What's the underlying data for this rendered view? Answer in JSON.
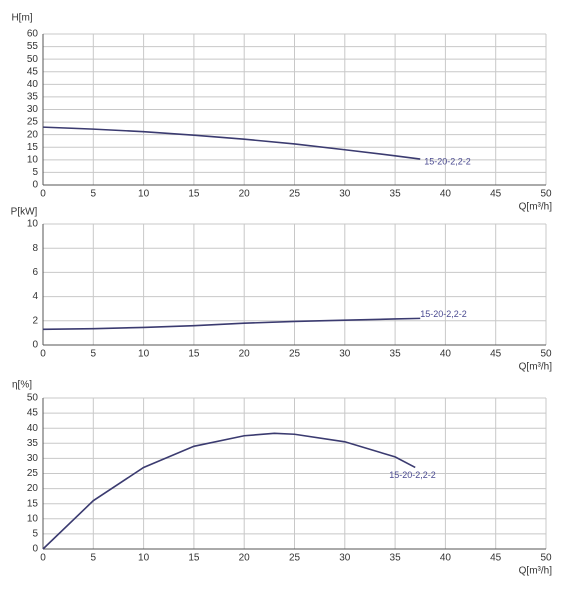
{
  "chart_data": [
    {
      "type": "line",
      "y_label": "H[m]",
      "x_label": "Q[m³/h]",
      "x": [
        0,
        5,
        10,
        15,
        20,
        25,
        30,
        35,
        37.5
      ],
      "series": [
        {
          "name": "15-20-2,2-2",
          "color": "#3b3b70",
          "values": [
            23,
            22.2,
            21.2,
            19.8,
            18.2,
            16.3,
            14,
            11.6,
            10.3
          ]
        }
      ],
      "xlim": [
        0,
        50
      ],
      "xticks": [
        0,
        5,
        10,
        15,
        20,
        25,
        30,
        35,
        40,
        45,
        50
      ],
      "ylim": [
        0,
        60
      ],
      "yticks": [
        0,
        5,
        10,
        15,
        20,
        25,
        30,
        35,
        40,
        45,
        50,
        55,
        60
      ],
      "grid": true
    },
    {
      "type": "line",
      "y_label": "P[kW]",
      "x_label": "Q[m³/h]",
      "x": [
        0,
        5,
        10,
        15,
        20,
        25,
        30,
        35,
        37.5
      ],
      "series": [
        {
          "name": "15-20-2,2-2",
          "color": "#3b3b70",
          "values": [
            1.3,
            1.35,
            1.45,
            1.6,
            1.8,
            1.95,
            2.05,
            2.15,
            2.2
          ]
        }
      ],
      "xlim": [
        0,
        50
      ],
      "xticks": [
        0,
        5,
        10,
        15,
        20,
        25,
        30,
        35,
        40,
        45,
        50
      ],
      "ylim": [
        0,
        10
      ],
      "yticks": [
        0,
        2,
        4,
        6,
        8,
        10
      ],
      "grid": true
    },
    {
      "type": "line",
      "y_label": "η[%]",
      "x_label": "Q[m³/h]",
      "x": [
        0,
        5,
        10,
        15,
        20,
        23,
        25,
        30,
        35,
        37
      ],
      "series": [
        {
          "name": "15-20-2,2-2",
          "color": "#3b3b70",
          "values": [
            0,
            16,
            27,
            34,
            37.5,
            38.3,
            38,
            35.5,
            30.5,
            27
          ]
        }
      ],
      "xlim": [
        0,
        50
      ],
      "xticks": [
        0,
        5,
        10,
        15,
        20,
        25,
        30,
        35,
        40,
        45,
        50
      ],
      "ylim": [
        0,
        50
      ],
      "yticks": [
        0,
        5,
        10,
        15,
        20,
        25,
        30,
        35,
        40,
        45,
        50
      ],
      "grid": true
    }
  ]
}
